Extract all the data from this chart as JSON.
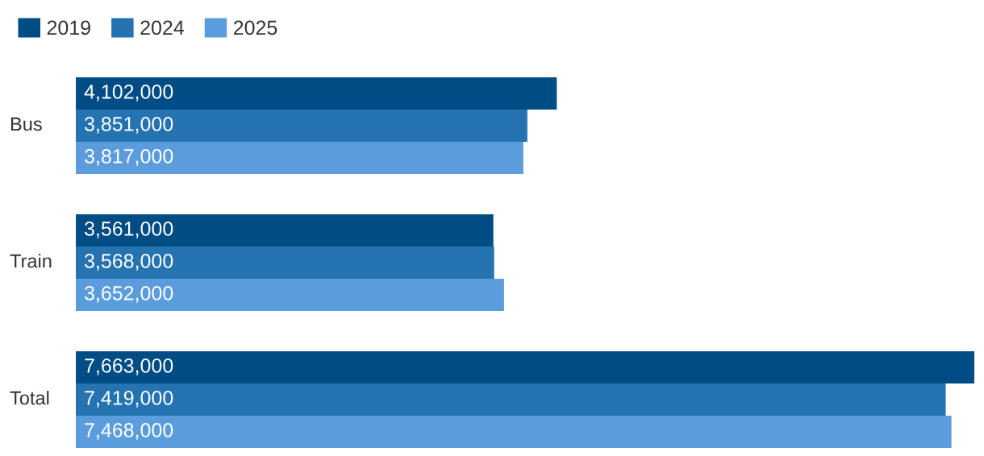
{
  "chart_data": {
    "type": "bar",
    "orientation": "horizontal",
    "categories": [
      "Bus",
      "Train",
      "Total"
    ],
    "series": [
      {
        "name": "2019",
        "color": "#004c85",
        "values": [
          4102000,
          3561000,
          7663000
        ],
        "value_labels": [
          "4,102,000",
          "3,561,000",
          "7,663,000"
        ]
      },
      {
        "name": "2024",
        "color": "#2573b0",
        "values": [
          3851000,
          3568000,
          7419000
        ],
        "value_labels": [
          "3,851,000",
          "3,568,000",
          "7,419,000"
        ]
      },
      {
        "name": "2025",
        "color": "#5b9ddc",
        "values": [
          3817000,
          3652000,
          7468000
        ],
        "value_labels": [
          "3,817,000",
          "3,652,000",
          "7,468,000"
        ]
      }
    ],
    "legend": "top left"
  }
}
